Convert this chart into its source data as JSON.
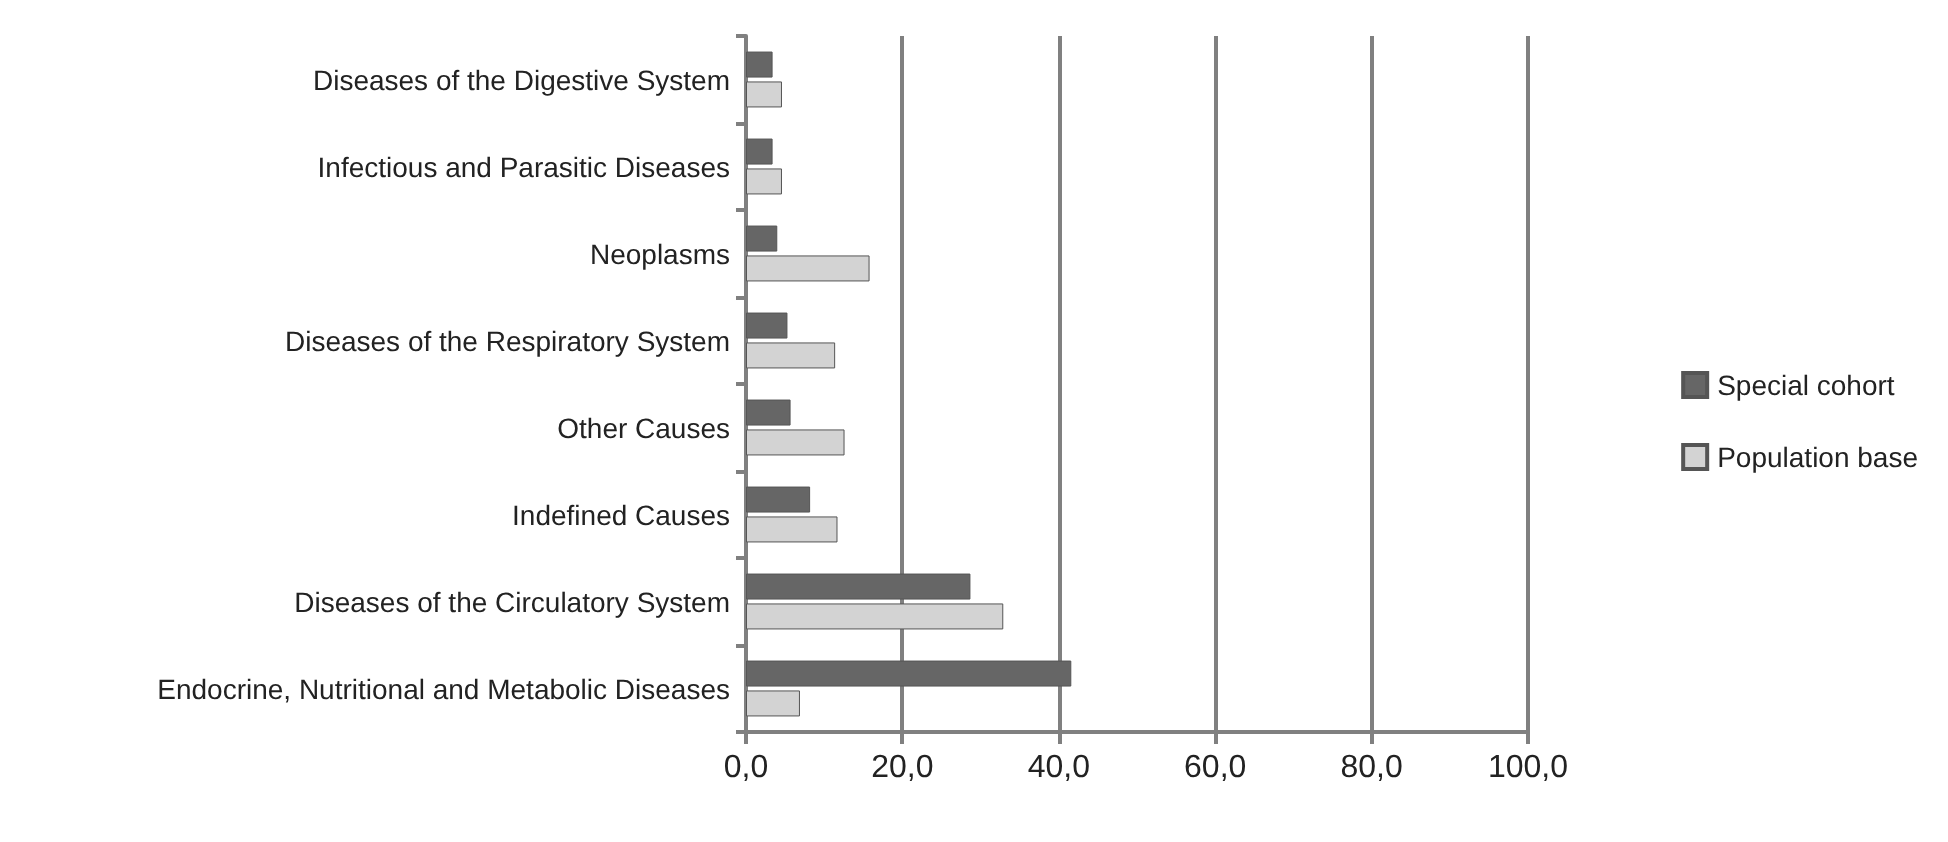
{
  "chart_data": {
    "type": "bar",
    "orientation": "horizontal",
    "categories": [
      "Diseases of the Digestive System",
      "Infectious and Parasitic Diseases",
      "Neoplasms",
      "Diseases of the Respiratory System",
      "Other Causes",
      "Indefined Causes",
      "Diseases of the Circulatory System",
      "Endocrine, Nutritional and Metabolic Diseases"
    ],
    "series": [
      {
        "name": "Special cohort",
        "color": "#666666",
        "values": [
          3.4,
          3.4,
          4.0,
          5.3,
          5.7,
          8.2,
          28.7,
          41.6
        ]
      },
      {
        "name": "Population base",
        "color": "#d3d3d3",
        "values": [
          4.6,
          4.6,
          15.8,
          11.4,
          12.6,
          11.7,
          32.9,
          6.9
        ]
      }
    ],
    "xlim": [
      0,
      100
    ],
    "xticks": [
      {
        "value": 0,
        "label": "0,0"
      },
      {
        "value": 20,
        "label": "20,0"
      },
      {
        "value": 40,
        "label": "40,0"
      },
      {
        "value": 60,
        "label": "60,0"
      },
      {
        "value": 80,
        "label": "80,0"
      },
      {
        "value": 100,
        "label": "100,0"
      }
    ],
    "grid": "x",
    "legend": "right"
  }
}
